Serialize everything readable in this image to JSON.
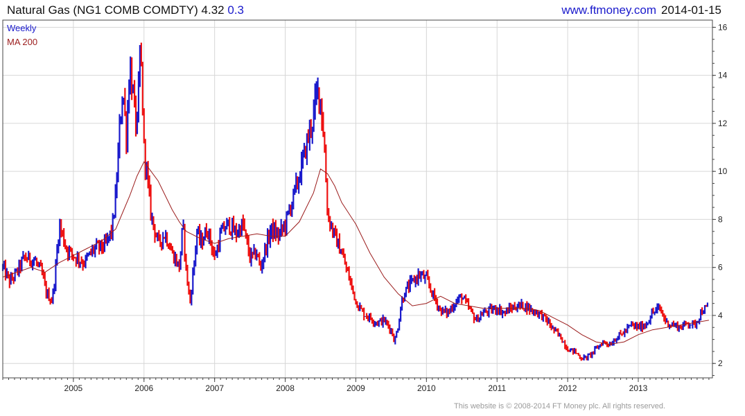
{
  "header": {
    "title": "Natural Gas (NG1 COMB COMDTY) 4.32",
    "change": "0.3",
    "site": "www.ftmoney.com",
    "date": "2014-01-15"
  },
  "footer": {
    "copyright": "This website is © 2008-2014 FT Money plc. All rights reserved."
  },
  "colors": {
    "up": "#1a1acc",
    "down": "#ee1111",
    "ma": "#9b1c1c",
    "grid": "#d6d6d6",
    "axis": "#444444"
  },
  "chart_data": {
    "type": "line",
    "title": "Natural Gas (NG1 COMB COMDTY) 4.32",
    "legend": [
      "Weekly",
      "MA 200"
    ],
    "legend_placement": "top-left",
    "grid": true,
    "xlim": [
      2004.0,
      2014.05
    ],
    "ylim": [
      1.4,
      16.3
    ],
    "x_ticks": [
      "2005",
      "2006",
      "2007",
      "2008",
      "2009",
      "2010",
      "2011",
      "2012",
      "2013"
    ],
    "x_tick_values": [
      2005,
      2006,
      2007,
      2008,
      2009,
      2010,
      2011,
      2012,
      2013
    ],
    "y_ticks": [
      "2",
      "4",
      "6",
      "8",
      "10",
      "12",
      "14",
      "16"
    ],
    "y_tick_values": [
      2,
      4,
      6,
      8,
      10,
      12,
      14,
      16
    ],
    "series": [
      {
        "name": "Weekly",
        "x": [
          2004.0,
          2004.1,
          2004.2,
          2004.3,
          2004.45,
          2004.55,
          2004.62,
          2004.7,
          2004.75,
          2004.8,
          2004.9,
          2005.0,
          2005.15,
          2005.3,
          2005.45,
          2005.55,
          2005.6,
          2005.66,
          2005.7,
          2005.75,
          2005.8,
          2005.85,
          2005.9,
          2005.95,
          2006.0,
          2006.1,
          2006.2,
          2006.3,
          2006.4,
          2006.5,
          2006.55,
          2006.6,
          2006.65,
          2006.7,
          2006.75,
          2006.8,
          2006.9,
          2007.0,
          2007.1,
          2007.2,
          2007.3,
          2007.4,
          2007.5,
          2007.6,
          2007.65,
          2007.7,
          2007.8,
          2007.9,
          2008.0,
          2008.1,
          2008.2,
          2008.3,
          2008.4,
          2008.45,
          2008.5,
          2008.55,
          2008.6,
          2008.7,
          2008.8,
          2008.9,
          2009.0,
          2009.1,
          2009.2,
          2009.3,
          2009.4,
          2009.5,
          2009.55,
          2009.6,
          2009.65,
          2009.7,
          2009.8,
          2009.9,
          2010.0,
          2010.1,
          2010.2,
          2010.3,
          2010.4,
          2010.5,
          2010.6,
          2010.7,
          2010.8,
          2010.9,
          2011.0,
          2011.1,
          2011.2,
          2011.3,
          2011.4,
          2011.5,
          2011.6,
          2011.7,
          2011.8,
          2011.9,
          2012.0,
          2012.1,
          2012.2,
          2012.3,
          2012.4,
          2012.5,
          2012.6,
          2012.7,
          2012.8,
          2012.9,
          2013.0,
          2013.1,
          2013.2,
          2013.3,
          2013.4,
          2013.5,
          2013.6,
          2013.7,
          2013.8,
          2013.9,
          2014.0
        ],
        "values": [
          6.0,
          5.4,
          5.8,
          6.4,
          6.3,
          5.8,
          4.9,
          4.6,
          6.0,
          7.8,
          6.8,
          6.5,
          6.2,
          6.8,
          6.9,
          7.6,
          9.0,
          12.0,
          13.5,
          11.5,
          14.5,
          13.0,
          11.6,
          15.3,
          11.0,
          8.2,
          7.0,
          7.4,
          6.6,
          6.0,
          7.8,
          5.8,
          4.5,
          5.9,
          7.5,
          7.0,
          7.6,
          6.4,
          7.5,
          7.8,
          7.4,
          7.8,
          6.4,
          6.6,
          5.9,
          6.6,
          7.6,
          7.3,
          7.8,
          8.8,
          9.8,
          11.1,
          12.3,
          13.4,
          13.0,
          11.3,
          8.2,
          7.3,
          6.6,
          5.6,
          4.6,
          4.1,
          3.9,
          3.7,
          3.8,
          3.4,
          2.9,
          3.6,
          4.6,
          5.0,
          5.4,
          5.7,
          5.5,
          4.8,
          4.2,
          4.1,
          4.5,
          4.8,
          4.3,
          3.8,
          4.1,
          4.2,
          4.3,
          4.1,
          4.3,
          4.4,
          4.4,
          4.2,
          4.1,
          3.8,
          3.4,
          3.1,
          2.6,
          2.5,
          2.2,
          2.3,
          2.6,
          2.9,
          2.8,
          3.1,
          3.3,
          3.6,
          3.5,
          3.6,
          4.1,
          4.3,
          3.7,
          3.6,
          3.5,
          3.7,
          3.6,
          4.2,
          4.32
        ]
      },
      {
        "name": "MA 200",
        "x": [
          2004.0,
          2004.2,
          2004.4,
          2004.6,
          2004.8,
          2005.0,
          2005.2,
          2005.4,
          2005.6,
          2005.7,
          2005.8,
          2005.9,
          2006.0,
          2006.2,
          2006.4,
          2006.5,
          2006.6,
          2006.8,
          2007.0,
          2007.2,
          2007.4,
          2007.6,
          2007.8,
          2008.0,
          2008.2,
          2008.4,
          2008.5,
          2008.6,
          2008.7,
          2008.8,
          2009.0,
          2009.2,
          2009.4,
          2009.6,
          2009.8,
          2010.0,
          2010.2,
          2010.4,
          2010.6,
          2010.8,
          2011.0,
          2011.2,
          2011.4,
          2011.6,
          2011.8,
          2012.0,
          2012.2,
          2012.4,
          2012.6,
          2012.8,
          2013.0,
          2013.2,
          2013.4,
          2013.6,
          2013.8,
          2014.0
        ],
        "values": [
          5.6,
          5.8,
          6.0,
          5.8,
          6.2,
          6.5,
          6.8,
          7.1,
          7.6,
          8.3,
          9.0,
          9.8,
          10.4,
          9.6,
          8.4,
          7.9,
          7.5,
          7.2,
          7.0,
          7.2,
          7.3,
          7.4,
          7.3,
          7.3,
          7.9,
          9.1,
          10.1,
          9.9,
          9.4,
          8.7,
          7.8,
          6.6,
          5.6,
          4.9,
          4.4,
          4.5,
          4.8,
          4.5,
          4.4,
          4.3,
          4.3,
          4.3,
          4.3,
          4.2,
          3.9,
          3.6,
          3.2,
          2.9,
          2.8,
          2.9,
          3.2,
          3.4,
          3.5,
          3.6,
          3.7,
          3.8
        ]
      }
    ]
  }
}
